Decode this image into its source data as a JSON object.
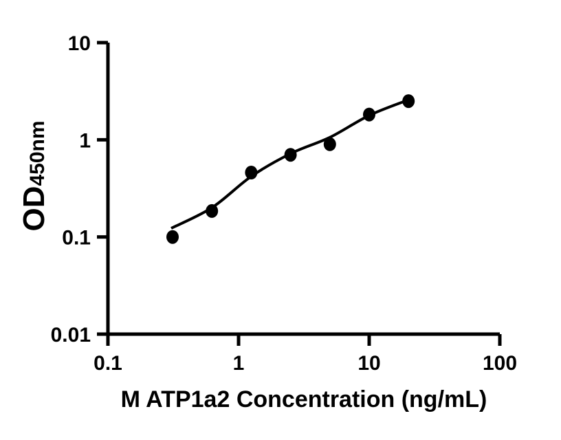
{
  "figure": {
    "background_color": "#ffffff",
    "ink_color": "#000000"
  },
  "chart_data": {
    "type": "scatter",
    "title": "",
    "xlabel": "M ATP1a2 Concentration (ng/mL)",
    "ylabel_main": "OD",
    "ylabel_sub": "450nm",
    "grid": false,
    "legend": null,
    "x_axis": {
      "scale": "log10",
      "min": 0.1,
      "max": 100,
      "tick_values": [
        0.1,
        1,
        10,
        100
      ],
      "tick_labels": [
        "0.1",
        "1",
        "10",
        "100"
      ]
    },
    "y_axis": {
      "scale": "log10",
      "min": 0.01,
      "max": 10,
      "tick_values": [
        10,
        1,
        0.1,
        0.01
      ],
      "tick_labels": [
        "10",
        "1",
        "0.1",
        "0.01"
      ]
    },
    "series": [
      {
        "name": "standard-points",
        "marker": "filled-circle",
        "color": "#000000",
        "x": [
          0.3125,
          0.625,
          1.25,
          2.5,
          5,
          10,
          20
        ],
        "y": [
          0.1,
          0.185,
          0.46,
          0.7,
          0.9,
          1.82,
          2.5
        ]
      }
    ],
    "fit_curve": {
      "name": "standard-fit-line",
      "color": "#000000",
      "x": [
        0.305,
        0.625,
        1.25,
        2.5,
        5,
        10,
        20
      ],
      "y": [
        0.123,
        0.2,
        0.42,
        0.72,
        1.06,
        1.78,
        2.58
      ]
    }
  }
}
